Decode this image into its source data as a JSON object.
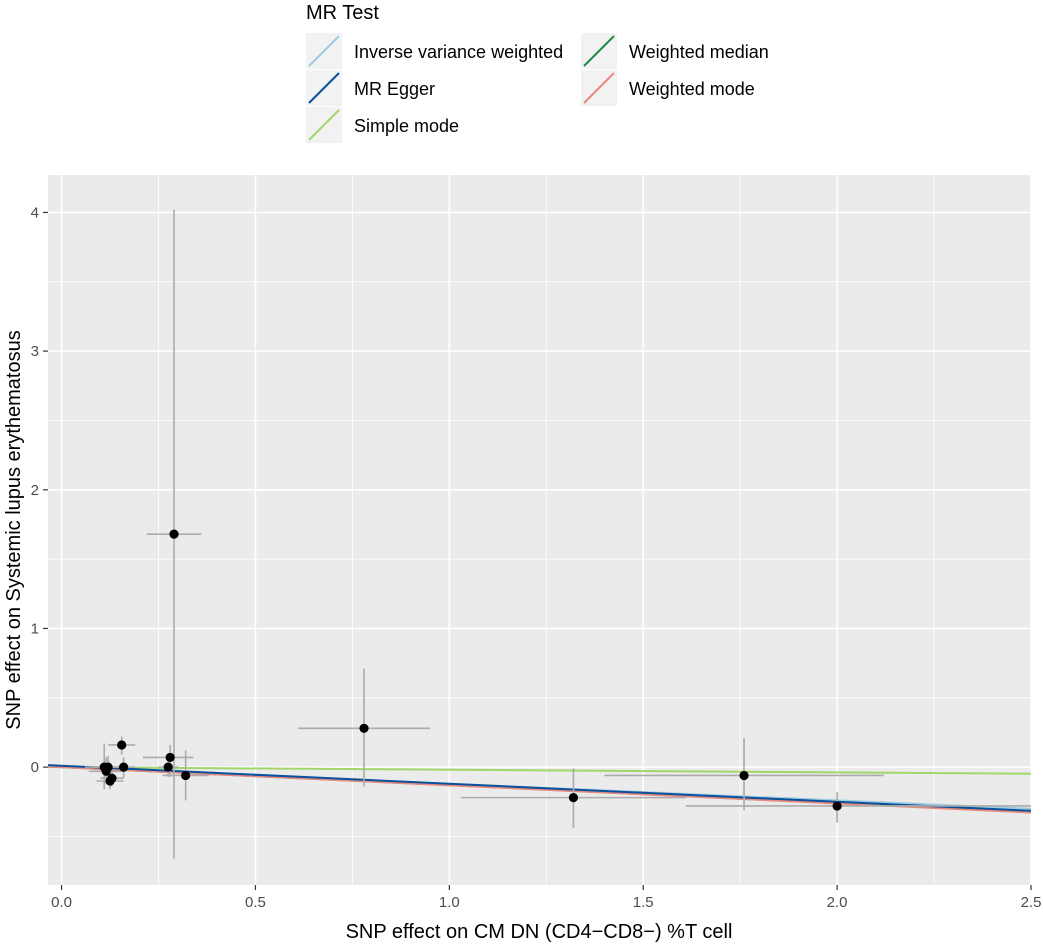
{
  "chart_data": {
    "type": "scatter",
    "xlabel": "SNP effect on CM DN (CD4−CD8−) %T cell",
    "ylabel": "SNP effect on Systemic lupus erythematosus",
    "xlim": [
      -0.035,
      2.5
    ],
    "ylim": [
      -0.85,
      4.27
    ],
    "x_ticks": [
      0.0,
      0.5,
      1.0,
      1.5,
      2.0,
      2.5
    ],
    "x_tick_labels": [
      "0.0",
      "0.5",
      "1.0",
      "1.5",
      "2.0",
      "2.5"
    ],
    "y_ticks": [
      0,
      1,
      2,
      3,
      4
    ],
    "y_tick_labels": [
      "0",
      "1",
      "2",
      "3",
      "4"
    ],
    "grid": true,
    "legend": {
      "title": "MR Test",
      "placement": "top",
      "entries": [
        {
          "name": "Inverse variance weighted",
          "color": "#9ecae1"
        },
        {
          "name": "MR Egger",
          "color": "#08519c"
        },
        {
          "name": "Simple mode",
          "color": "#a1d76a"
        },
        {
          "name": "Weighted median",
          "color": "#238b45"
        },
        {
          "name": "Weighted mode",
          "color": "#e78a7e"
        }
      ]
    },
    "points": [
      {
        "x": 0.11,
        "y": 0.0,
        "x_lo": 0.06,
        "x_hi": 0.16,
        "y_lo": -0.16,
        "y_hi": 0.17
      },
      {
        "x": 0.115,
        "y": -0.03,
        "x_lo": 0.07,
        "x_hi": 0.16,
        "y_lo": -0.12,
        "y_hi": 0.07
      },
      {
        "x": 0.12,
        "y": 0.0,
        "x_lo": 0.08,
        "x_hi": 0.16,
        "y_lo": -0.08,
        "y_hi": 0.08
      },
      {
        "x": 0.125,
        "y": -0.1,
        "x_lo": 0.09,
        "x_hi": 0.16,
        "y_lo": -0.16,
        "y_hi": -0.03
      },
      {
        "x": 0.13,
        "y": -0.08,
        "x_lo": 0.1,
        "x_hi": 0.16,
        "y_lo": -0.14,
        "y_hi": -0.02
      },
      {
        "x": 0.155,
        "y": 0.16,
        "x_lo": 0.12,
        "x_hi": 0.19,
        "y_lo": 0.09,
        "y_hi": 0.22
      },
      {
        "x": 0.16,
        "y": 0.0,
        "x_lo": 0.13,
        "x_hi": 0.19,
        "y_lo": -0.08,
        "y_hi": 0.07
      },
      {
        "x": 0.275,
        "y": 0.0,
        "x_lo": 0.25,
        "x_hi": 0.3,
        "y_lo": -0.07,
        "y_hi": 0.07
      },
      {
        "x": 0.28,
        "y": 0.07,
        "x_lo": 0.21,
        "x_hi": 0.34,
        "y_lo": -0.07,
        "y_hi": 0.16
      },
      {
        "x": 0.29,
        "y": 1.68,
        "x_lo": 0.22,
        "x_hi": 0.36,
        "y_lo": -0.66,
        "y_hi": 4.02
      },
      {
        "x": 0.32,
        "y": -0.06,
        "x_lo": 0.26,
        "x_hi": 0.38,
        "y_lo": -0.24,
        "y_hi": 0.12
      },
      {
        "x": 0.78,
        "y": 0.28,
        "x_lo": 0.61,
        "x_hi": 0.95,
        "y_lo": -0.14,
        "y_hi": 0.71
      },
      {
        "x": 1.32,
        "y": -0.22,
        "x_lo": 1.03,
        "x_hi": 1.61,
        "y_lo": -0.44,
        "y_hi": -0.01
      },
      {
        "x": 1.76,
        "y": -0.06,
        "x_lo": 1.4,
        "x_hi": 2.12,
        "y_lo": -0.31,
        "y_hi": 0.21
      },
      {
        "x": 2.0,
        "y": -0.28,
        "x_lo": 1.61,
        "x_hi": 2.5,
        "y_lo": -0.4,
        "y_hi": -0.18
      }
    ],
    "lines": [
      {
        "name": "Inverse variance weighted",
        "intercept": 0.0,
        "slope": -0.12
      },
      {
        "name": "MR Egger",
        "intercept": 0.01,
        "slope": -0.13
      },
      {
        "name": "Simple mode",
        "intercept": 0.0,
        "slope": -0.019
      },
      {
        "name": "Weighted median",
        "intercept": 0.0,
        "slope": -0.13
      },
      {
        "name": "Weighted mode",
        "intercept": 0.0,
        "slope": -0.131
      }
    ]
  }
}
